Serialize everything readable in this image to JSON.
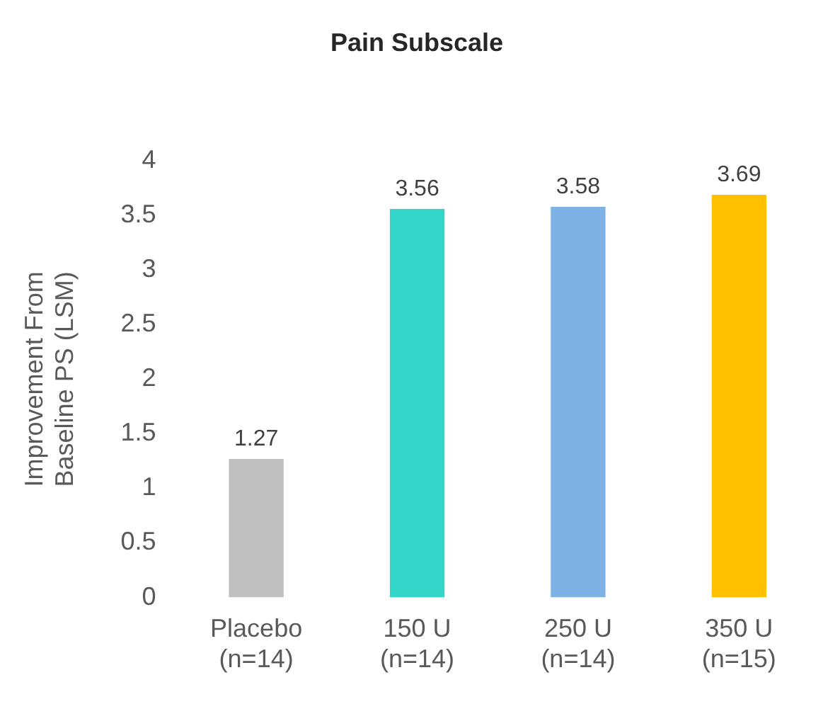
{
  "chart_data": {
    "type": "bar",
    "title": "Pain Subscale",
    "ylabel": "Improvement From\nBaseline PS (LSM)",
    "categories": [
      "Placebo\n(n=14)",
      "150 U\n(n=14)",
      "250 U\n(n=14)",
      "350 U\n(n=15)"
    ],
    "values": [
      1.27,
      3.56,
      3.58,
      3.69
    ],
    "colors": [
      "#bfbfbf",
      "#33d6c8",
      "#7eb2e4",
      "#ffc000"
    ],
    "ylim": [
      0,
      4
    ],
    "yticks": [
      0,
      0.5,
      1,
      1.5,
      2,
      2.5,
      3,
      3.5,
      4
    ],
    "grid": false,
    "legend": false,
    "data_labels": true
  }
}
